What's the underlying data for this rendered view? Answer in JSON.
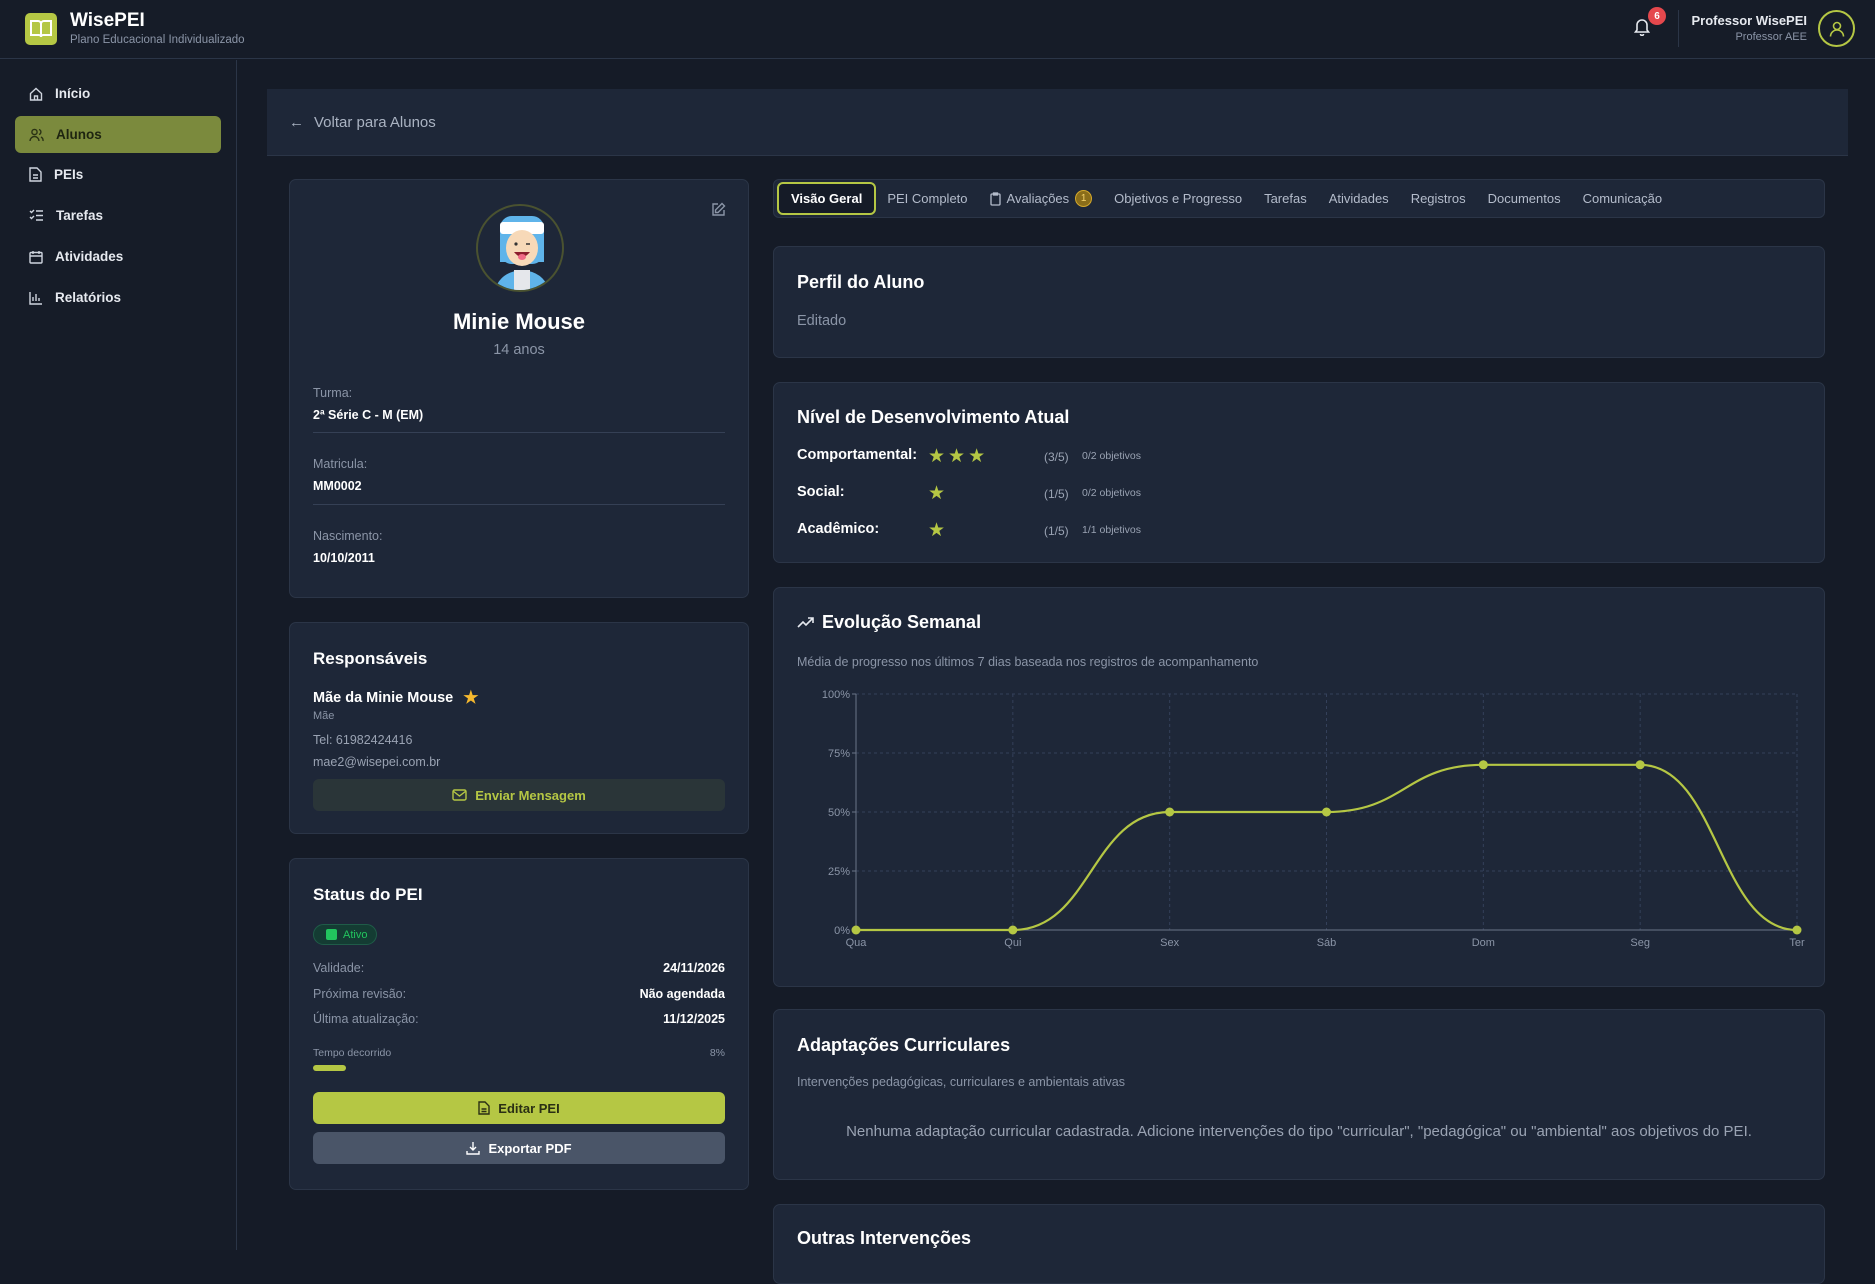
{
  "app": {
    "title": "WisePEI",
    "subtitle": "Plano Educacional Individualizado",
    "notifications": "6"
  },
  "user": {
    "name": "Professor WisePEI",
    "role": "Professor AEE"
  },
  "sidebar": {
    "items": [
      {
        "label": "Início",
        "icon": "home-icon"
      },
      {
        "label": "Alunos",
        "icon": "users-icon",
        "active": true
      },
      {
        "label": "PEIs",
        "icon": "file-icon"
      },
      {
        "label": "Tarefas",
        "icon": "list-checks-icon"
      },
      {
        "label": "Atividades",
        "icon": "calendar-icon"
      },
      {
        "label": "Relatórios",
        "icon": "bar-chart-icon"
      }
    ]
  },
  "back": {
    "label": "Voltar para Alunos"
  },
  "student": {
    "name": "Minie Mouse",
    "age": "14 anos",
    "fields": [
      {
        "label": "Turma:",
        "value": "2ª Série C - M (EM)"
      },
      {
        "label": "Matricula:",
        "value": "MM0002"
      },
      {
        "label": "Nascimento:",
        "value": "10/10/2011"
      }
    ]
  },
  "guardians": {
    "title": "Responsáveis",
    "name": "Mãe da Minie Mouse",
    "relation": "Mãe",
    "phone": "Tel: 61982424416",
    "email": "mae2@wisepei.com.br",
    "button": "Enviar Mensagem"
  },
  "pei_status": {
    "title": "Status do PEI",
    "badge": "Ativo",
    "rows": [
      {
        "label": "Validade:",
        "value": "24/11/2026"
      },
      {
        "label": "Próxima revisão:",
        "value": "Não agendada"
      },
      {
        "label": "Última atualização:",
        "value": "11/12/2025"
      }
    ],
    "elapsed_label": "Tempo decorrido",
    "elapsed_percent": "8%",
    "elapsed_value": 8,
    "edit_button": "Editar PEI",
    "export_button": "Exportar PDF"
  },
  "tabs": [
    {
      "label": "Visão Geral",
      "active": true
    },
    {
      "label": "PEI Completo"
    },
    {
      "label": "Avaliações",
      "badge": "1"
    },
    {
      "label": "Objetivos e Progresso"
    },
    {
      "label": "Tarefas"
    },
    {
      "label": "Atividades"
    },
    {
      "label": "Registros"
    },
    {
      "label": "Documentos"
    },
    {
      "label": "Comunicação"
    }
  ],
  "profile": {
    "title": "Perfil do Aluno",
    "text": "Editado"
  },
  "development": {
    "title": "Nível de Desenvolvimento Atual",
    "rows": [
      {
        "label": "Comportamental:",
        "stars": 3,
        "score": "(3/5)",
        "objectives": "0/2 objetivos"
      },
      {
        "label": "Social:",
        "stars": 1,
        "score": "(1/5)",
        "objectives": "0/2 objetivos"
      },
      {
        "label": "Acadêmico:",
        "stars": 1,
        "score": "(1/5)",
        "objectives": "1/1 objetivos"
      }
    ]
  },
  "evolution": {
    "title": "Evolução Semanal",
    "subtitle": "Média de progresso nos últimos 7 dias baseada nos registros de acompanhamento"
  },
  "chart_data": {
    "type": "line",
    "categories": [
      "Qua",
      "Qui",
      "Sex",
      "Sáb",
      "Dom",
      "Seg",
      "Ter"
    ],
    "values": [
      0,
      0,
      50,
      50,
      70,
      70,
      0
    ],
    "ylim": [
      0,
      100
    ],
    "yticks": [
      "0%",
      "25%",
      "50%",
      "75%",
      "100%"
    ],
    "grid": true,
    "color": "#b5c744"
  },
  "adaptations": {
    "title": "Adaptações Curriculares",
    "subtitle": "Intervenções pedagógicas, curriculares e ambientais ativas",
    "empty": "Nenhuma adaptação curricular cadastrada. Adicione intervenções do tipo \"curricular\", \"pedagógica\" ou \"ambiental\" aos objetivos do PEI."
  },
  "other": {
    "title": "Outras Intervenções"
  },
  "colors": {
    "accent": "#b5c744",
    "background": "#151b27",
    "card": "#1e2738",
    "danger": "#e5484d",
    "success": "#22c55e",
    "star_gold": "#f5b82e"
  }
}
